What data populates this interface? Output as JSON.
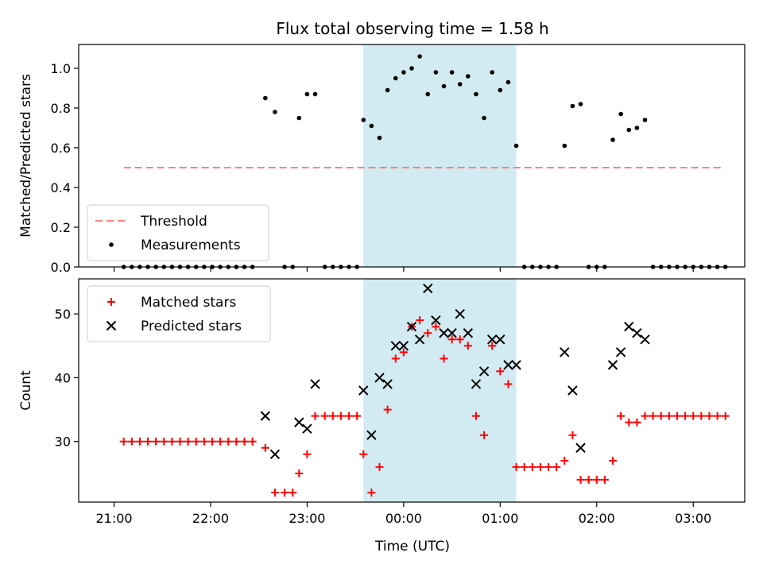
{
  "chart_data": {
    "title": "Flux total observing time = 1.58 h",
    "xlabel": "Time (UTC)",
    "x_ticks": [
      {
        "t": 0,
        "label": "21:00"
      },
      {
        "t": 60,
        "label": "22:00"
      },
      {
        "t": 120,
        "label": "23:00"
      },
      {
        "t": 180,
        "label": "00:00"
      },
      {
        "t": 240,
        "label": "01:00"
      },
      {
        "t": 300,
        "label": "02:00"
      },
      {
        "t": 360,
        "label": "03:00"
      }
    ],
    "observing_window": {
      "start": "23:35",
      "end": "01:10",
      "color": "#add8e6"
    },
    "panels": [
      {
        "id": "ratio",
        "type": "scatter",
        "ylabel": "Matched/Predicted stars",
        "ylim": [
          0,
          1.12
        ],
        "y_ticks": [
          "0.0",
          "0.2",
          "0.4",
          "0.6",
          "0.8",
          "1.0"
        ],
        "legend": {
          "placement": "lower-left",
          "entries": [
            "Threshold",
            "Measurements"
          ]
        },
        "threshold": {
          "name": "Threshold",
          "y": 0.5,
          "x_range": [
            "21:06",
            "03:18"
          ],
          "color": "#ff8080"
        },
        "series": [
          {
            "name": "Measurements",
            "color": "#000000",
            "points": [
              [
                "21:06",
                0
              ],
              [
                "21:11",
                0
              ],
              [
                "21:16",
                0
              ],
              [
                "21:21",
                0
              ],
              [
                "21:26",
                0
              ],
              [
                "21:31",
                0
              ],
              [
                "21:36",
                0
              ],
              [
                "21:41",
                0
              ],
              [
                "21:46",
                0
              ],
              [
                "21:51",
                0
              ],
              [
                "21:56",
                0
              ],
              [
                "22:01",
                0
              ],
              [
                "22:06",
                0
              ],
              [
                "22:11",
                0
              ],
              [
                "22:16",
                0
              ],
              [
                "22:21",
                0
              ],
              [
                "22:26",
                0
              ],
              [
                "22:34",
                0.85
              ],
              [
                "22:40",
                0.78
              ],
              [
                "22:46",
                0
              ],
              [
                "22:51",
                0
              ],
              [
                "22:55",
                0.75
              ],
              [
                "23:00",
                0.87
              ],
              [
                "23:05",
                0.87
              ],
              [
                "23:11",
                0
              ],
              [
                "23:16",
                0
              ],
              [
                "23:21",
                0
              ],
              [
                "23:26",
                0
              ],
              [
                "23:31",
                0
              ],
              [
                "23:35",
                0.74
              ],
              [
                "23:40",
                0.71
              ],
              [
                "23:45",
                0.65
              ],
              [
                "23:50",
                0.89
              ],
              [
                "23:55",
                0.95
              ],
              [
                "00:00",
                0.98
              ],
              [
                "00:05",
                1.0
              ],
              [
                "00:10",
                1.06
              ],
              [
                "00:15",
                0.87
              ],
              [
                "00:20",
                0.98
              ],
              [
                "00:25",
                0.91
              ],
              [
                "00:30",
                0.98
              ],
              [
                "00:35",
                0.92
              ],
              [
                "00:40",
                0.96
              ],
              [
                "00:45",
                0.87
              ],
              [
                "00:50",
                0.75
              ],
              [
                "00:55",
                0.98
              ],
              [
                "01:00",
                0.89
              ],
              [
                "01:05",
                0.93
              ],
              [
                "01:10",
                0.61
              ],
              [
                "01:15",
                0
              ],
              [
                "01:20",
                0
              ],
              [
                "01:25",
                0
              ],
              [
                "01:30",
                0
              ],
              [
                "01:35",
                0
              ],
              [
                "01:40",
                0.61
              ],
              [
                "01:45",
                0.81
              ],
              [
                "01:50",
                0.82
              ],
              [
                "01:55",
                0
              ],
              [
                "02:00",
                0
              ],
              [
                "02:05",
                0
              ],
              [
                "02:10",
                0.64
              ],
              [
                "02:15",
                0.77
              ],
              [
                "02:20",
                0.69
              ],
              [
                "02:25",
                0.7
              ],
              [
                "02:30",
                0.74
              ],
              [
                "02:35",
                0
              ],
              [
                "02:40",
                0
              ],
              [
                "02:45",
                0
              ],
              [
                "02:50",
                0
              ],
              [
                "02:55",
                0
              ],
              [
                "03:00",
                0
              ],
              [
                "03:05",
                0
              ],
              [
                "03:10",
                0
              ],
              [
                "03:15",
                0
              ],
              [
                "03:20",
                0
              ]
            ]
          }
        ]
      },
      {
        "id": "count",
        "type": "scatter",
        "ylabel": "Count",
        "ylim": [
          20.5,
          55.5
        ],
        "y_ticks": [
          "30",
          "40",
          "50"
        ],
        "legend": {
          "placement": "top-left",
          "entries": [
            "Matched stars",
            "Predicted stars"
          ]
        },
        "series": [
          {
            "name": "Matched stars",
            "color": "#ff0000",
            "marker": "plus",
            "points": [
              [
                "21:06",
                30
              ],
              [
                "21:11",
                30
              ],
              [
                "21:16",
                30
              ],
              [
                "21:21",
                30
              ],
              [
                "21:26",
                30
              ],
              [
                "21:31",
                30
              ],
              [
                "21:36",
                30
              ],
              [
                "21:41",
                30
              ],
              [
                "21:46",
                30
              ],
              [
                "21:51",
                30
              ],
              [
                "21:56",
                30
              ],
              [
                "22:01",
                30
              ],
              [
                "22:06",
                30
              ],
              [
                "22:11",
                30
              ],
              [
                "22:16",
                30
              ],
              [
                "22:21",
                30
              ],
              [
                "22:26",
                30
              ],
              [
                "22:34",
                29
              ],
              [
                "22:40",
                22
              ],
              [
                "22:46",
                22
              ],
              [
                "22:51",
                22
              ],
              [
                "22:55",
                25
              ],
              [
                "23:00",
                28
              ],
              [
                "23:05",
                34
              ],
              [
                "23:11",
                34
              ],
              [
                "23:16",
                34
              ],
              [
                "23:21",
                34
              ],
              [
                "23:26",
                34
              ],
              [
                "23:31",
                34
              ],
              [
                "23:35",
                28
              ],
              [
                "23:40",
                22
              ],
              [
                "23:45",
                26
              ],
              [
                "23:50",
                35
              ],
              [
                "23:55",
                43
              ],
              [
                "00:00",
                44
              ],
              [
                "00:05",
                48
              ],
              [
                "00:10",
                49
              ],
              [
                "00:15",
                47
              ],
              [
                "00:20",
                48
              ],
              [
                "00:25",
                43
              ],
              [
                "00:30",
                46
              ],
              [
                "00:35",
                46
              ],
              [
                "00:40",
                45
              ],
              [
                "00:45",
                34
              ],
              [
                "00:50",
                31
              ],
              [
                "00:55",
                45
              ],
              [
                "01:00",
                41
              ],
              [
                "01:05",
                39
              ],
              [
                "01:10",
                26
              ],
              [
                "01:15",
                26
              ],
              [
                "01:20",
                26
              ],
              [
                "01:25",
                26
              ],
              [
                "01:30",
                26
              ],
              [
                "01:35",
                26
              ],
              [
                "01:40",
                27
              ],
              [
                "01:45",
                31
              ],
              [
                "01:50",
                24
              ],
              [
                "01:55",
                24
              ],
              [
                "02:00",
                24
              ],
              [
                "02:05",
                24
              ],
              [
                "02:10",
                27
              ],
              [
                "02:15",
                34
              ],
              [
                "02:20",
                33
              ],
              [
                "02:25",
                33
              ],
              [
                "02:30",
                34
              ],
              [
                "02:35",
                34
              ],
              [
                "02:40",
                34
              ],
              [
                "02:45",
                34
              ],
              [
                "02:50",
                34
              ],
              [
                "02:55",
                34
              ],
              [
                "03:00",
                34
              ],
              [
                "03:05",
                34
              ],
              [
                "03:10",
                34
              ],
              [
                "03:15",
                34
              ],
              [
                "03:20",
                34
              ]
            ]
          },
          {
            "name": "Predicted stars",
            "color": "#000000",
            "marker": "x",
            "points": [
              [
                "22:34",
                34
              ],
              [
                "22:40",
                28
              ],
              [
                "22:55",
                33
              ],
              [
                "23:00",
                32
              ],
              [
                "23:05",
                39
              ],
              [
                "23:35",
                38
              ],
              [
                "23:40",
                31
              ],
              [
                "23:45",
                40
              ],
              [
                "23:50",
                39
              ],
              [
                "23:55",
                45
              ],
              [
                "00:00",
                45
              ],
              [
                "00:05",
                48
              ],
              [
                "00:10",
                46
              ],
              [
                "00:15",
                54
              ],
              [
                "00:20",
                49
              ],
              [
                "00:25",
                47
              ],
              [
                "00:30",
                47
              ],
              [
                "00:35",
                50
              ],
              [
                "00:40",
                47
              ],
              [
                "00:45",
                39
              ],
              [
                "00:50",
                41
              ],
              [
                "00:55",
                46
              ],
              [
                "01:00",
                46
              ],
              [
                "01:05",
                42
              ],
              [
                "01:10",
                42
              ],
              [
                "01:40",
                44
              ],
              [
                "01:45",
                38
              ],
              [
                "01:50",
                29
              ],
              [
                "02:10",
                42
              ],
              [
                "02:15",
                44
              ],
              [
                "02:20",
                48
              ],
              [
                "02:25",
                47
              ],
              [
                "02:30",
                46
              ]
            ]
          }
        ]
      }
    ]
  }
}
